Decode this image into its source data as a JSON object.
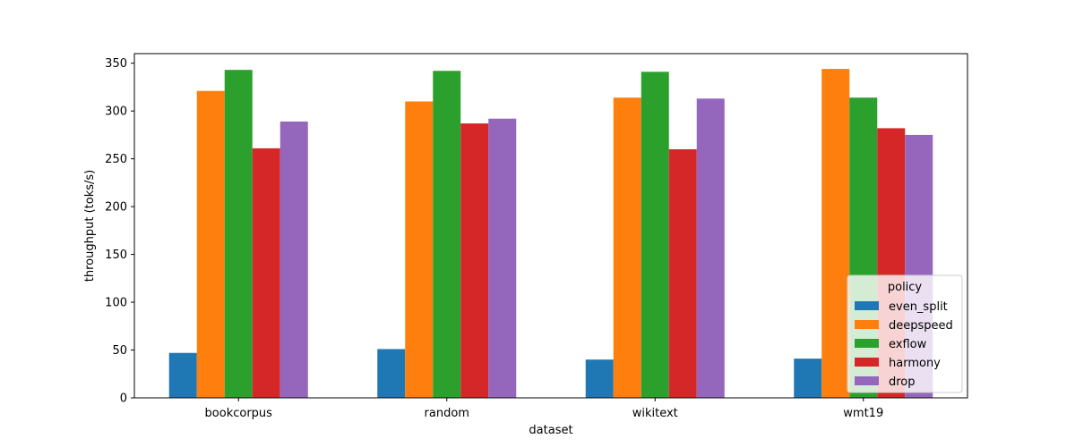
{
  "chart_data": {
    "type": "bar",
    "title": "",
    "xlabel": "dataset",
    "ylabel": "throughput (toks/s)",
    "categories": [
      "bookcorpus",
      "random",
      "wikitext",
      "wmt19"
    ],
    "ylim": [
      0,
      360
    ],
    "yticks": [
      0,
      50,
      100,
      150,
      200,
      250,
      300,
      350
    ],
    "grid": false,
    "legend": {
      "title": "policy",
      "placement": "lower-right"
    },
    "series": [
      {
        "name": "even_split",
        "color": "#1f77b4",
        "values": [
          47,
          51,
          40,
          41
        ]
      },
      {
        "name": "deepspeed",
        "color": "#ff7f0e",
        "values": [
          321,
          310,
          314,
          344
        ]
      },
      {
        "name": "exflow",
        "color": "#2ca02c",
        "values": [
          343,
          342,
          341,
          314
        ]
      },
      {
        "name": "harmony",
        "color": "#d62728",
        "values": [
          261,
          287,
          260,
          282
        ]
      },
      {
        "name": "drop",
        "color": "#9467bd",
        "values": [
          289,
          292,
          313,
          275
        ]
      }
    ]
  }
}
